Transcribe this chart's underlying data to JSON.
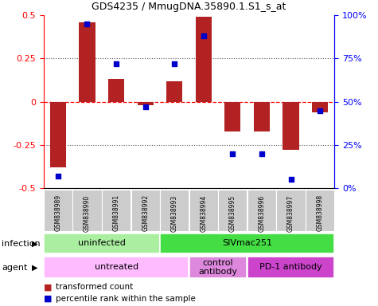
{
  "title": "GDS4235 / MmugDNA.35890.1.S1_s_at",
  "samples": [
    "GSM838989",
    "GSM838990",
    "GSM838991",
    "GSM838992",
    "GSM838993",
    "GSM838994",
    "GSM838995",
    "GSM838996",
    "GSM838997",
    "GSM838998"
  ],
  "bar_values": [
    -0.38,
    0.46,
    0.13,
    -0.02,
    0.12,
    0.49,
    -0.17,
    -0.17,
    -0.28,
    -0.06
  ],
  "dot_values": [
    7,
    95,
    72,
    47,
    72,
    88,
    20,
    20,
    5,
    45
  ],
  "bar_color": "#b22222",
  "dot_color": "#0000cd",
  "ylim_left": [
    -0.5,
    0.5
  ],
  "ylim_right": [
    0,
    100
  ],
  "yticks_left": [
    -0.5,
    -0.25,
    0,
    0.25,
    0.5
  ],
  "ytick_labels_left": [
    "-0.5",
    "-0.25",
    "0",
    "0.25",
    "0.5"
  ],
  "yticks_right": [
    0,
    25,
    50,
    75,
    100
  ],
  "ytick_labels_right": [
    "0%",
    "25%",
    "50%",
    "75%",
    "100%"
  ],
  "infection_groups": [
    {
      "label": "uninfected",
      "start": 0,
      "end": 4,
      "color": "#aaeea0"
    },
    {
      "label": "SIVmac251",
      "start": 4,
      "end": 10,
      "color": "#44dd44"
    }
  ],
  "agent_groups": [
    {
      "label": "untreated",
      "start": 0,
      "end": 5,
      "color": "#ffbbff"
    },
    {
      "label": "control\nantibody",
      "start": 5,
      "end": 7,
      "color": "#dd88dd"
    },
    {
      "label": "PD-1 antibody",
      "start": 7,
      "end": 10,
      "color": "#cc44cc"
    }
  ],
  "legend_items": [
    {
      "label": "transformed count",
      "color": "#b22222"
    },
    {
      "label": "percentile rank within the sample",
      "color": "#0000cd"
    }
  ],
  "infection_label": "infection",
  "agent_label": "agent",
  "bar_width": 0.55,
  "label_box_color": "#cccccc",
  "background_color": "#ffffff"
}
